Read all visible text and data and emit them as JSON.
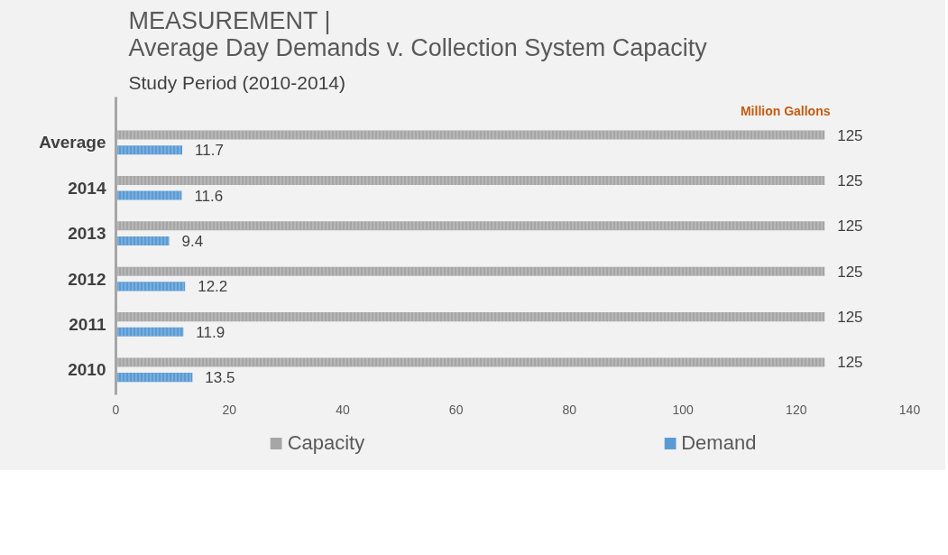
{
  "chart_data": {
    "type": "bar",
    "orientation": "horizontal",
    "title": "MEASUREMENT |\nAverage Day Demands v. Collection System Capacity",
    "subtitle": "Study Period (2010-2014)",
    "annotations": [
      "Million Gallons"
    ],
    "categories": [
      "Average",
      "2014",
      "2013",
      "2012",
      "2011",
      "2010"
    ],
    "series": [
      {
        "name": "Capacity",
        "color": "#a6a6a6",
        "values": [
          125,
          125,
          125,
          125,
          125,
          125
        ]
      },
      {
        "name": "Demand",
        "color": "#5b9bd5",
        "values": [
          11.7,
          11.6,
          9.4,
          12.2,
          11.9,
          13.5
        ]
      }
    ],
    "xlim": [
      0,
      140
    ],
    "xticks": [
      0,
      20,
      40,
      60,
      80,
      100,
      120,
      140
    ],
    "data_labels": true,
    "grid": false,
    "legend": "bottom"
  }
}
